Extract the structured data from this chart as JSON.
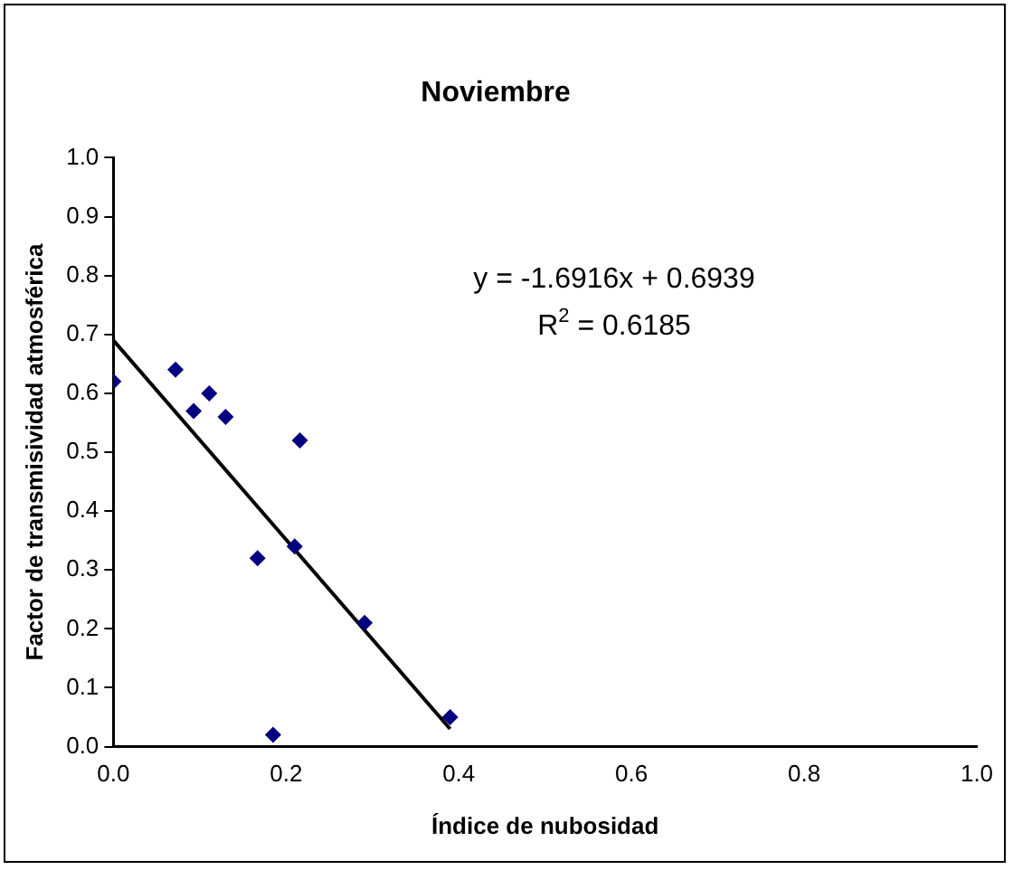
{
  "chart_data": {
    "type": "scatter",
    "title": "Noviembre",
    "xlabel": "Índice de nubosidad",
    "ylabel": "Factor de transmisividad atmosférica",
    "x": [
      0.0,
      0.072,
      0.093,
      0.111,
      0.13,
      0.216,
      0.167,
      0.21,
      0.185,
      0.291,
      0.39
    ],
    "series": [
      {
        "color": "#000080",
        "marker": "diamond",
        "values": [
          0.62,
          0.64,
          0.57,
          0.6,
          0.56,
          0.52,
          0.32,
          0.34,
          0.02,
          0.21,
          0.05
        ]
      },
      {
        "type": "line",
        "color": "#000000",
        "marker": "none",
        "x": [
          0,
          0.39
        ],
        "values": [
          0.69,
          0.03
        ]
      }
    ],
    "grid": false,
    "legend": false,
    "xlim": [
      0,
      1
    ],
    "xticks": [
      {
        "value": 0,
        "label": "0.0"
      },
      {
        "value": 0.2,
        "label": "0.2"
      },
      {
        "value": 0.4,
        "label": "0.4"
      },
      {
        "value": 0.6,
        "label": "0.6"
      },
      {
        "value": 0.8,
        "label": "0.8"
      },
      {
        "value": 1,
        "label": "1.0"
      }
    ],
    "ylim": [
      0,
      1
    ],
    "yticks": [
      {
        "value": 0,
        "label": "0.0"
      },
      {
        "value": 0.1,
        "label": "0.1"
      },
      {
        "value": 0.2,
        "label": "0.2"
      },
      {
        "value": 0.3,
        "label": "0.3"
      },
      {
        "value": 0.4,
        "label": "0.4"
      },
      {
        "value": 0.5,
        "label": "0.5"
      },
      {
        "value": 0.6,
        "label": "0.6"
      },
      {
        "value": 0.7,
        "label": "0.7"
      },
      {
        "value": 0.8,
        "label": "0.8"
      },
      {
        "value": 0.9,
        "label": "0.9"
      },
      {
        "value": 1,
        "label": "1.0"
      }
    ],
    "annotations": [
      "y = -1.6916x + 0.6939",
      "R$^{2}$ = 0.6185"
    ]
  }
}
